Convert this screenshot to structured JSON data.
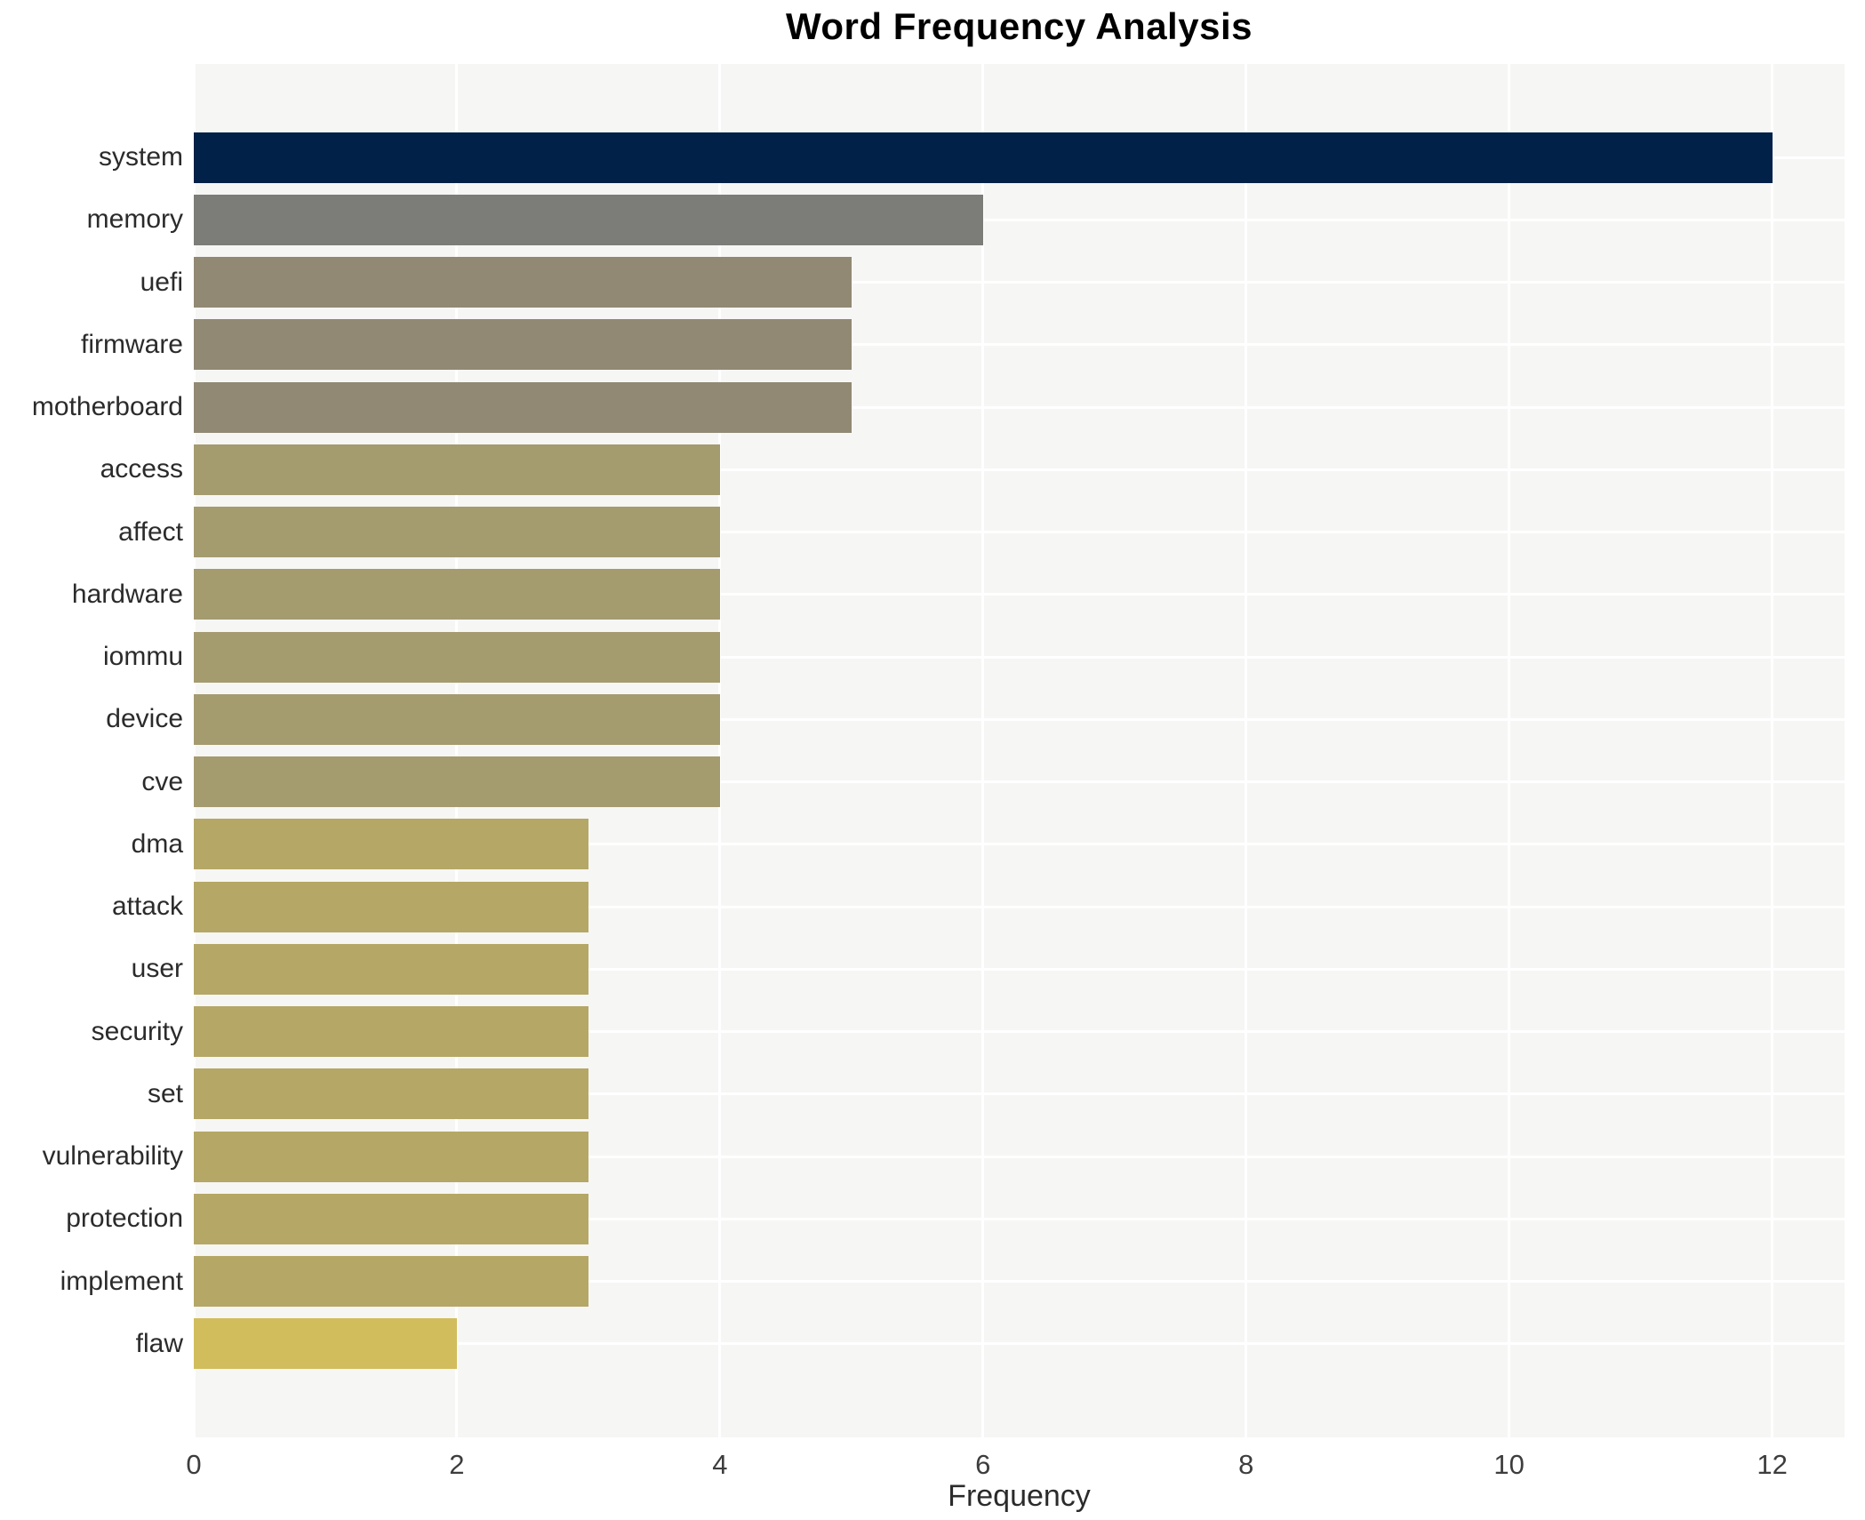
{
  "chart_data": {
    "type": "bar",
    "orientation": "horizontal",
    "title": "Word Frequency Analysis",
    "xlabel": "Frequency",
    "ylabel": "",
    "categories": [
      "system",
      "memory",
      "uefi",
      "firmware",
      "motherboard",
      "access",
      "affect",
      "hardware",
      "iommu",
      "device",
      "cve",
      "dma",
      "attack",
      "user",
      "security",
      "set",
      "vulnerability",
      "protection",
      "implement",
      "flaw"
    ],
    "values": [
      12,
      6,
      5,
      5,
      5,
      4,
      4,
      4,
      4,
      4,
      4,
      3,
      3,
      3,
      3,
      3,
      3,
      3,
      3,
      2
    ],
    "bar_colors": [
      "#012148",
      "#7c7c78",
      "#918973",
      "#918973",
      "#918973",
      "#a49b6f",
      "#a49b6f",
      "#a49b6f",
      "#a49b6f",
      "#a49b6f",
      "#a49b6f",
      "#b5a766",
      "#b5a766",
      "#b5a766",
      "#b5a766",
      "#b5a766",
      "#b5a766",
      "#b5a766",
      "#b5a766",
      "#d2bd5c"
    ],
    "xlim": [
      0,
      12.55
    ],
    "xticks": [
      0,
      2,
      4,
      6,
      8,
      10,
      12
    ],
    "grid": true,
    "legend": false,
    "colors": {
      "plot_background": "#f6f6f5",
      "grid_line": "#ffffff",
      "title_text": "#000000",
      "axis_text": "#2b2b2b",
      "tick_text": "#3d3d3d"
    }
  }
}
